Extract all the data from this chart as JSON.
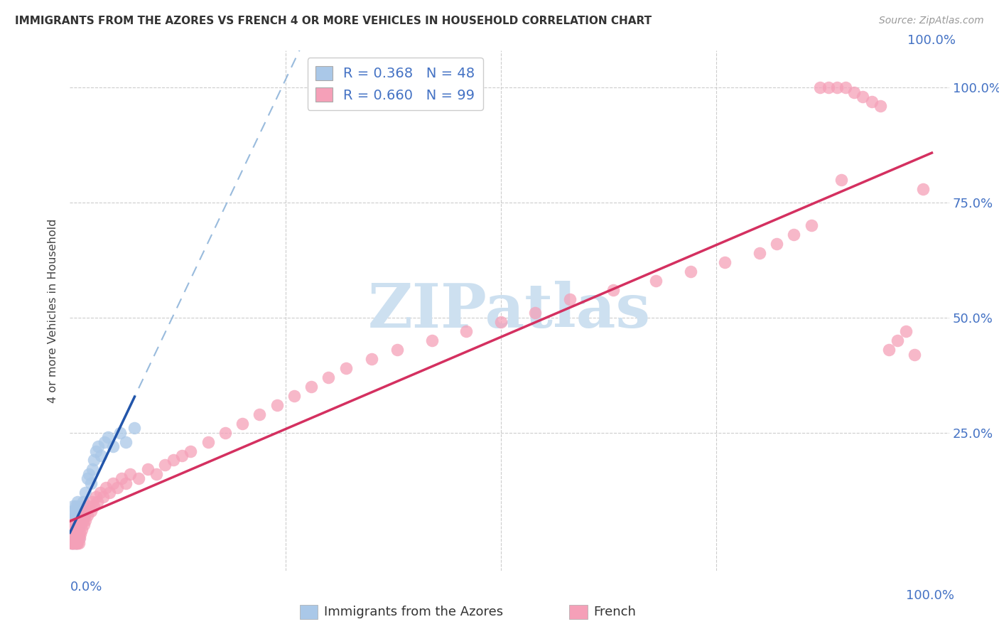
{
  "title": "IMMIGRANTS FROM THE AZORES VS FRENCH 4 OR MORE VEHICLES IN HOUSEHOLD CORRELATION CHART",
  "source": "Source: ZipAtlas.com",
  "ylabel": "4 or more Vehicles in Household",
  "R1": 0.368,
  "N1": 48,
  "R2": 0.66,
  "N2": 99,
  "blue_scatter_color": "#aac8e8",
  "pink_scatter_color": "#f5a0b8",
  "blue_line_color": "#2255aa",
  "pink_line_color": "#d43060",
  "blue_dash_color": "#99bbdd",
  "axis_label_color": "#4472c4",
  "title_color": "#333333",
  "source_color": "#999999",
  "grid_color": "#cccccc",
  "watermark_text": "ZIPatlas",
  "legend1_label": "Immigrants from the Azores",
  "legend2_label": "French",
  "blue_x": [
    0.001,
    0.002,
    0.002,
    0.003,
    0.003,
    0.003,
    0.004,
    0.004,
    0.004,
    0.005,
    0.005,
    0.005,
    0.006,
    0.006,
    0.006,
    0.006,
    0.007,
    0.007,
    0.007,
    0.008,
    0.008,
    0.008,
    0.009,
    0.009,
    0.01,
    0.01,
    0.01,
    0.011,
    0.012,
    0.013,
    0.014,
    0.015,
    0.016,
    0.018,
    0.02,
    0.022,
    0.024,
    0.026,
    0.028,
    0.03,
    0.033,
    0.036,
    0.04,
    0.044,
    0.05,
    0.058,
    0.065,
    0.075
  ],
  "blue_y": [
    0.02,
    0.06,
    0.01,
    0.08,
    0.02,
    0.05,
    0.04,
    0.01,
    0.09,
    0.06,
    0.02,
    0.08,
    0.05,
    0.01,
    0.07,
    0.03,
    0.06,
    0.02,
    0.09,
    0.05,
    0.01,
    0.07,
    0.04,
    0.1,
    0.06,
    0.02,
    0.08,
    0.05,
    0.07,
    0.09,
    0.06,
    0.1,
    0.08,
    0.12,
    0.15,
    0.16,
    0.14,
    0.17,
    0.19,
    0.21,
    0.22,
    0.2,
    0.23,
    0.24,
    0.22,
    0.25,
    0.23,
    0.26
  ],
  "pink_x": [
    0.001,
    0.001,
    0.001,
    0.002,
    0.002,
    0.002,
    0.002,
    0.003,
    0.003,
    0.003,
    0.003,
    0.004,
    0.004,
    0.004,
    0.005,
    0.005,
    0.005,
    0.006,
    0.006,
    0.006,
    0.007,
    0.007,
    0.007,
    0.008,
    0.008,
    0.009,
    0.009,
    0.01,
    0.01,
    0.011,
    0.012,
    0.013,
    0.014,
    0.015,
    0.016,
    0.017,
    0.018,
    0.019,
    0.02,
    0.022,
    0.024,
    0.026,
    0.028,
    0.03,
    0.032,
    0.035,
    0.038,
    0.042,
    0.046,
    0.05,
    0.055,
    0.06,
    0.065,
    0.07,
    0.08,
    0.09,
    0.1,
    0.11,
    0.12,
    0.13,
    0.14,
    0.16,
    0.18,
    0.2,
    0.22,
    0.24,
    0.26,
    0.28,
    0.3,
    0.32,
    0.35,
    0.38,
    0.42,
    0.46,
    0.5,
    0.54,
    0.58,
    0.63,
    0.68,
    0.72,
    0.76,
    0.8,
    0.82,
    0.84,
    0.86,
    0.87,
    0.88,
    0.89,
    0.895,
    0.9,
    0.91,
    0.92,
    0.93,
    0.94,
    0.95,
    0.96,
    0.97,
    0.98,
    0.99
  ],
  "pink_y": [
    0.01,
    0.02,
    0.04,
    0.01,
    0.03,
    0.05,
    0.02,
    0.01,
    0.03,
    0.05,
    0.02,
    0.01,
    0.03,
    0.05,
    0.01,
    0.03,
    0.02,
    0.01,
    0.03,
    0.05,
    0.01,
    0.03,
    0.02,
    0.01,
    0.03,
    0.01,
    0.02,
    0.01,
    0.03,
    0.02,
    0.03,
    0.05,
    0.04,
    0.06,
    0.05,
    0.07,
    0.06,
    0.08,
    0.07,
    0.09,
    0.08,
    0.1,
    0.09,
    0.11,
    0.1,
    0.12,
    0.11,
    0.13,
    0.12,
    0.14,
    0.13,
    0.15,
    0.14,
    0.16,
    0.15,
    0.17,
    0.16,
    0.18,
    0.19,
    0.2,
    0.21,
    0.23,
    0.25,
    0.27,
    0.29,
    0.31,
    0.33,
    0.35,
    0.37,
    0.39,
    0.41,
    0.43,
    0.45,
    0.47,
    0.49,
    0.51,
    0.54,
    0.56,
    0.58,
    0.6,
    0.62,
    0.64,
    0.66,
    0.68,
    0.7,
    1.0,
    1.0,
    1.0,
    0.8,
    1.0,
    0.99,
    0.98,
    0.97,
    0.96,
    0.43,
    0.45,
    0.47,
    0.42,
    0.78
  ],
  "xlim": [
    0.0,
    1.02
  ],
  "ylim": [
    -0.05,
    1.08
  ],
  "yticks": [
    0.0,
    0.25,
    0.5,
    0.75,
    1.0
  ],
  "ytick_labels_right": [
    "",
    "25.0%",
    "50.0%",
    "75.0%",
    "100.0%"
  ]
}
